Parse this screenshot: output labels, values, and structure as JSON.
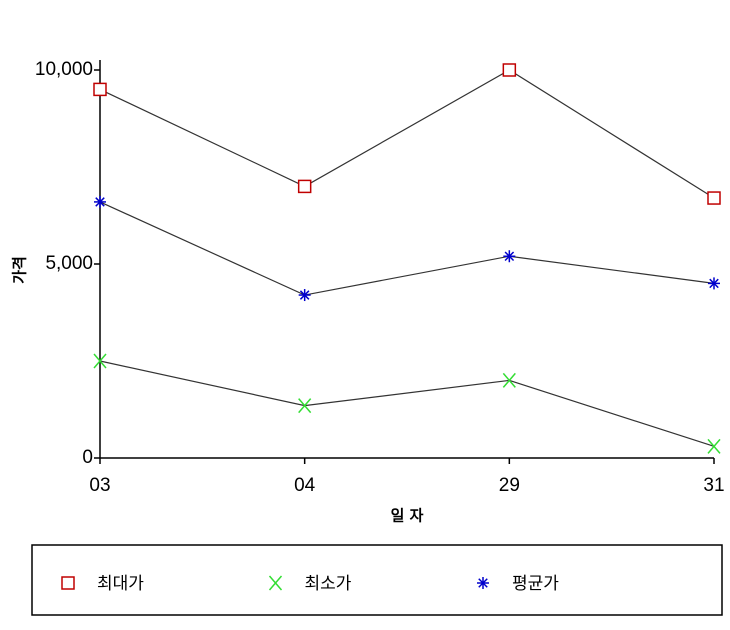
{
  "chart_data": {
    "type": "line",
    "x_label": "일 자",
    "y_label": "가격",
    "categories": [
      "03",
      "04",
      "29",
      "31"
    ],
    "series": [
      {
        "name": "최대가",
        "color": "#c00000",
        "marker": "square",
        "values": [
          9500,
          7000,
          10000,
          6700
        ]
      },
      {
        "name": "최소가",
        "color": "#33dd33",
        "marker": "x",
        "values": [
          2500,
          1350,
          2000,
          300
        ]
      },
      {
        "name": "평균가",
        "color": "#0000cc",
        "marker": "asterisk",
        "values": [
          6600,
          4200,
          5200,
          4500
        ]
      }
    ],
    "line_color": "#333333",
    "ylim": [
      0,
      10000
    ],
    "yticks": [
      0,
      {
        "value": 5000,
        "label": "5,000"
      },
      {
        "value": 10000,
        "label": "10,000"
      }
    ],
    "grid": false,
    "legend": "bottom"
  }
}
